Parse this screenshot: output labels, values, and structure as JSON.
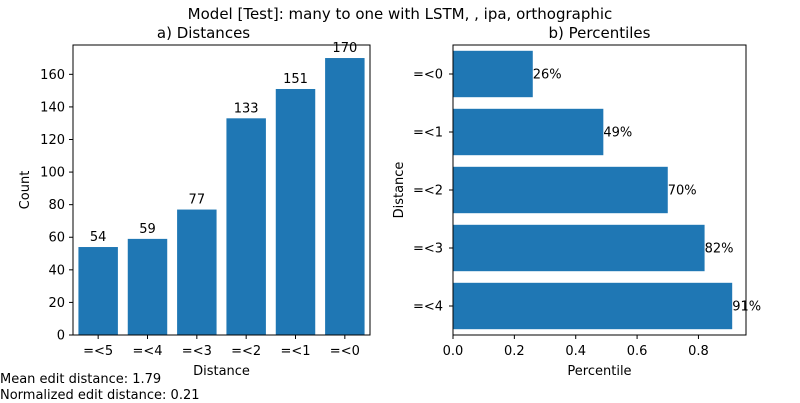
{
  "figure": {
    "suptitle": "Model [Test]: many to one with LSTM, , ipa, orthographic",
    "mean_edit_distance": "Mean edit distance: 1.79",
    "normalized_edit_distance": "Normalized edit distance: 0.21",
    "bar_color": "#1f77b4"
  },
  "chart_data": [
    {
      "type": "bar",
      "title": "a) Distances",
      "xlabel": "Distance",
      "ylabel": "Count",
      "categories": [
        "=<5",
        "=<4",
        "=<3",
        "=<2",
        "=<1",
        "=<0"
      ],
      "values": [
        54,
        59,
        77,
        133,
        151,
        170
      ],
      "data_labels": [
        "54",
        "59",
        "77",
        "133",
        "151",
        "170"
      ],
      "ylim": [
        0,
        178
      ],
      "yticks": [
        0,
        20,
        40,
        60,
        80,
        100,
        120,
        140,
        160
      ],
      "grid": false
    },
    {
      "type": "bar",
      "orientation": "horizontal",
      "title": "b) Percentiles",
      "xlabel": "Percentile",
      "ylabel": "Distance",
      "categories": [
        "=<0",
        "=<1",
        "=<2",
        "=<3",
        "=<4"
      ],
      "values": [
        0.26,
        0.49,
        0.7,
        0.82,
        0.91
      ],
      "data_labels": [
        "26%",
        "49%",
        "70%",
        "82%",
        "91%"
      ],
      "xlim": [
        0,
        0.955
      ],
      "xticks": [
        0.0,
        0.2,
        0.4,
        0.6,
        0.8
      ],
      "xtick_labels": [
        "0.0",
        "0.2",
        "0.4",
        "0.6",
        "0.8"
      ],
      "grid": false
    }
  ]
}
